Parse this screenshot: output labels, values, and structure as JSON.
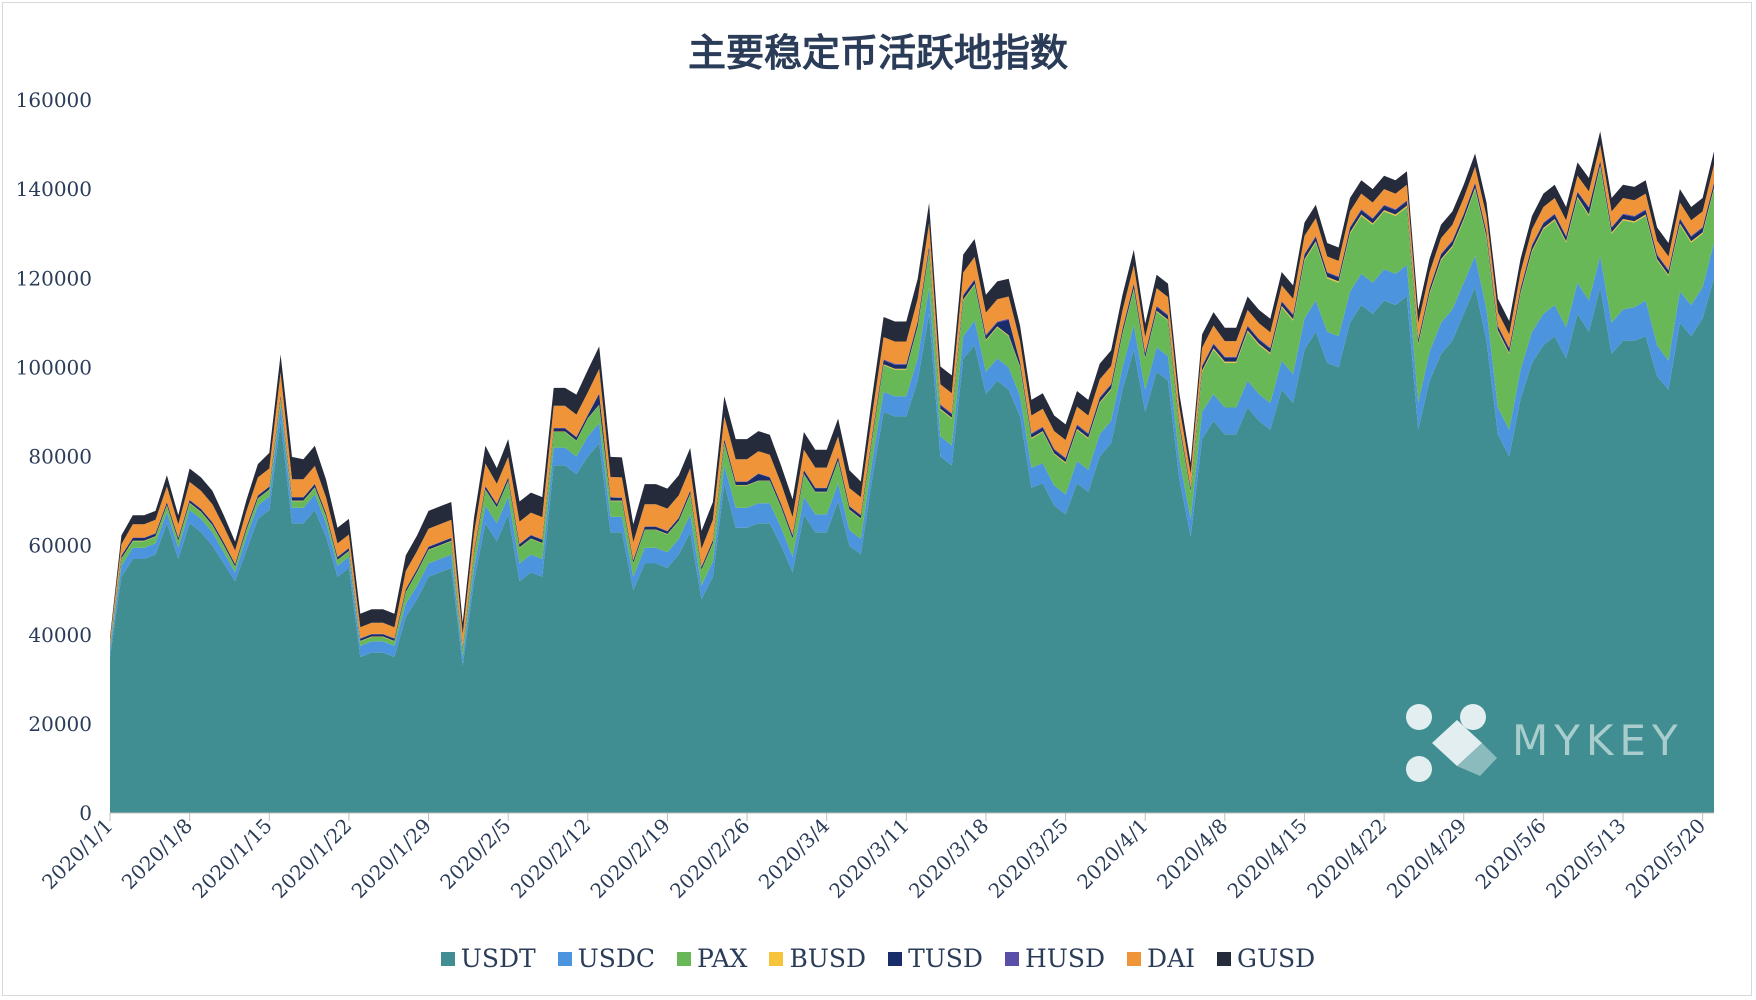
{
  "chart_data": {
    "type": "area",
    "stacked": true,
    "title": "主要稳定币活跃地指数",
    "xlabel": "",
    "ylabel": "",
    "ylim": [
      0,
      160000
    ],
    "yticks": [
      0,
      20000,
      40000,
      60000,
      80000,
      100000,
      120000,
      140000,
      160000
    ],
    "x_start": "2020/1/1",
    "x_end": "2020/5/21",
    "x_tick_labels": [
      "2020/1/1",
      "2020/1/8",
      "2020/1/15",
      "2020/1/22",
      "2020/1/29",
      "2020/2/5",
      "2020/2/12",
      "2020/2/19",
      "2020/2/26",
      "2020/3/4",
      "2020/3/11",
      "2020/3/18",
      "2020/3/25",
      "2020/4/1",
      "2020/4/8",
      "2020/4/15",
      "2020/4/22",
      "2020/4/29",
      "2020/5/6",
      "2020/5/13",
      "2020/5/20"
    ],
    "grid": false,
    "legend_position": "bottom",
    "series": [
      {
        "name": "USDT",
        "color": "#408e91",
        "values": [
          35000,
          53000,
          57000,
          57000,
          58000,
          65000,
          57000,
          65000,
          63000,
          60000,
          56000,
          52000,
          59000,
          66000,
          68000,
          88000,
          65000,
          65000,
          68000,
          62000,
          53000,
          55000,
          35000,
          36000,
          36000,
          35000,
          44000,
          48000,
          53000,
          54000,
          55000,
          33000,
          52000,
          65000,
          61000,
          67000,
          52000,
          54000,
          53000,
          78000,
          78000,
          76000,
          80000,
          83000,
          63000,
          63000,
          50000,
          56000,
          56000,
          55000,
          58000,
          63000,
          48000,
          53000,
          74000,
          64000,
          64000,
          65000,
          65000,
          60000,
          54000,
          67000,
          63000,
          63000,
          70000,
          60000,
          58000,
          75000,
          90000,
          89000,
          89000,
          97000,
          112000,
          80000,
          78000,
          102000,
          105000,
          94000,
          97000,
          95000,
          89000,
          73000,
          74000,
          69000,
          67000,
          74000,
          72000,
          80000,
          83000,
          95000,
          104000,
          90000,
          99000,
          97000,
          75000,
          62000,
          84000,
          88000,
          85000,
          85000,
          91000,
          88000,
          86000,
          95000,
          92000,
          104000,
          108000,
          101000,
          100000,
          110000,
          114000,
          112000,
          115000,
          114000,
          116000,
          86000,
          97000,
          103000,
          106000,
          112000,
          118000,
          106000,
          85000,
          80000,
          93000,
          101000,
          105000,
          107000,
          102000,
          112000,
          108000,
          118000,
          103000,
          106000,
          106000,
          107000,
          98000,
          95000,
          110000,
          107000,
          111000,
          120000
        ]
      },
      {
        "name": "USDC",
        "color": "#4c94dd",
        "values": [
          1500,
          2500,
          2500,
          2500,
          2500,
          2500,
          2500,
          3000,
          3000,
          3000,
          2500,
          2000,
          3000,
          3000,
          3000,
          3500,
          3500,
          3500,
          3500,
          3000,
          2500,
          2500,
          2500,
          2500,
          2500,
          2500,
          3000,
          3000,
          3000,
          3000,
          3000,
          2000,
          3000,
          4000,
          4000,
          4000,
          4000,
          4000,
          4000,
          4000,
          4000,
          4000,
          4500,
          4500,
          3500,
          3500,
          3000,
          3500,
          3500,
          3500,
          3500,
          4000,
          3000,
          3500,
          4000,
          4500,
          4500,
          4500,
          4500,
          4000,
          3500,
          4000,
          4000,
          4000,
          4000,
          3500,
          3500,
          4000,
          4500,
          4500,
          4500,
          5000,
          6000,
          4500,
          4500,
          5000,
          5500,
          5000,
          5000,
          5000,
          4500,
          4500,
          4500,
          4500,
          4500,
          5000,
          5000,
          5000,
          5000,
          5000,
          5500,
          5000,
          5500,
          5500,
          4500,
          4000,
          6000,
          6000,
          6000,
          6000,
          6000,
          6000,
          6000,
          6500,
          6500,
          7000,
          7000,
          7000,
          7000,
          7000,
          7000,
          7000,
          7000,
          7000,
          7000,
          6000,
          6500,
          7000,
          7000,
          7000,
          7000,
          7000,
          6000,
          6000,
          6500,
          7000,
          7000,
          7000,
          7000,
          7000,
          7000,
          7000,
          7000,
          7000,
          7500,
          8000,
          7000,
          6500,
          7000,
          7000,
          7000,
          8000
        ]
      },
      {
        "name": "PAX",
        "color": "#69b857",
        "values": [
          800,
          1500,
          1500,
          1500,
          1500,
          1500,
          1500,
          1500,
          1500,
          1500,
          1500,
          1200,
          1500,
          1500,
          1500,
          1500,
          1500,
          1500,
          1500,
          1500,
          1200,
          1200,
          1000,
          1000,
          1000,
          1000,
          2500,
          3000,
          3000,
          3000,
          3000,
          1500,
          3000,
          3500,
          3500,
          3500,
          3500,
          3500,
          3500,
          3500,
          3500,
          3500,
          4000,
          4000,
          3500,
          3500,
          3000,
          4000,
          4000,
          4000,
          4000,
          4500,
          3500,
          4000,
          5000,
          5000,
          5000,
          5000,
          5000,
          4500,
          4000,
          5000,
          5000,
          5000,
          5000,
          4500,
          4500,
          5000,
          6000,
          6000,
          6000,
          7000,
          8000,
          6000,
          6000,
          8000,
          8000,
          7000,
          7000,
          7000,
          6500,
          6500,
          7000,
          7000,
          7000,
          7000,
          7000,
          7000,
          7000,
          7500,
          8000,
          7000,
          8000,
          8000,
          7000,
          6000,
          9000,
          10000,
          10000,
          10000,
          11000,
          11000,
          11000,
          12000,
          12000,
          13000,
          13000,
          12000,
          12000,
          13000,
          13000,
          13000,
          13000,
          13000,
          13000,
          13000,
          13000,
          14000,
          14000,
          14000,
          15000,
          16000,
          17000,
          17000,
          17000,
          18000,
          19000,
          19000,
          19000,
          19000,
          19000,
          20000,
          20000,
          20000,
          19000,
          19000,
          19000,
          19000,
          15000,
          14000,
          12000,
          12000
        ]
      },
      {
        "name": "BUSD",
        "color": "#f7c43c",
        "values": [
          50,
          100,
          100,
          100,
          100,
          100,
          100,
          100,
          100,
          100,
          100,
          100,
          100,
          100,
          100,
          100,
          100,
          100,
          100,
          100,
          100,
          100,
          100,
          100,
          100,
          100,
          100,
          100,
          100,
          100,
          100,
          100,
          100,
          100,
          100,
          100,
          100,
          100,
          100,
          100,
          100,
          100,
          100,
          100,
          100,
          100,
          100,
          100,
          100,
          100,
          100,
          100,
          100,
          100,
          100,
          100,
          100,
          100,
          100,
          100,
          100,
          100,
          100,
          100,
          100,
          100,
          100,
          100,
          200,
          200,
          200,
          200,
          200,
          200,
          200,
          200,
          200,
          200,
          200,
          200,
          200,
          200,
          200,
          200,
          200,
          200,
          200,
          200,
          200,
          200,
          200,
          200,
          200,
          200,
          200,
          200,
          300,
          300,
          300,
          300,
          300,
          300,
          300,
          300,
          300,
          300,
          300,
          300,
          300,
          300,
          300,
          300,
          300,
          300,
          300,
          300,
          300,
          300,
          300,
          300,
          300,
          300,
          300,
          300,
          300,
          300,
          300,
          300,
          300,
          300,
          300,
          300,
          300,
          300,
          300,
          300,
          300,
          300,
          300,
          300,
          300,
          300
        ]
      },
      {
        "name": "TUSD",
        "color": "#1a2d6b",
        "values": [
          300,
          600,
          600,
          600,
          600,
          600,
          600,
          600,
          600,
          600,
          600,
          500,
          600,
          600,
          600,
          700,
          700,
          700,
          700,
          600,
          600,
          600,
          500,
          500,
          500,
          500,
          600,
          600,
          600,
          600,
          600,
          500,
          600,
          700,
          700,
          700,
          700,
          700,
          700,
          700,
          700,
          700,
          700,
          2500,
          700,
          600,
          600,
          600,
          600,
          600,
          600,
          700,
          600,
          600,
          800,
          700,
          700,
          1500,
          700,
          700,
          700,
          800,
          800,
          800,
          800,
          700,
          700,
          800,
          900,
          900,
          900,
          1000,
          1000,
          800,
          800,
          900,
          900,
          900,
          900,
          3500,
          900,
          800,
          800,
          800,
          800,
          800,
          800,
          900,
          900,
          900,
          1000,
          900,
          900,
          900,
          800,
          700,
          900,
          900,
          900,
          900,
          900,
          900,
          900,
          900,
          900,
          1000,
          1000,
          900,
          900,
          1000,
          1000,
          1000,
          1000,
          1000,
          1000,
          900,
          900,
          1000,
          1000,
          1000,
          1000,
          1000,
          900,
          900,
          900,
          1000,
          1000,
          1000,
          1000,
          1000,
          1500,
          1000,
          1000,
          1000,
          1000,
          1000,
          900,
          900,
          1000,
          1000,
          1000,
          1000
        ]
      },
      {
        "name": "HUSD",
        "color": "#5a4fa8",
        "values": [
          50,
          100,
          100,
          100,
          100,
          100,
          100,
          100,
          100,
          100,
          100,
          100,
          100,
          100,
          100,
          100,
          100,
          100,
          100,
          100,
          100,
          100,
          100,
          100,
          100,
          100,
          100,
          100,
          100,
          100,
          100,
          100,
          100,
          100,
          100,
          100,
          100,
          100,
          100,
          100,
          100,
          100,
          100,
          100,
          100,
          100,
          100,
          100,
          100,
          100,
          100,
          100,
          100,
          100,
          100,
          100,
          100,
          100,
          100,
          100,
          100,
          100,
          100,
          100,
          100,
          100,
          100,
          100,
          200,
          200,
          200,
          200,
          200,
          200,
          200,
          200,
          200,
          200,
          200,
          200,
          200,
          200,
          200,
          200,
          200,
          200,
          200,
          200,
          200,
          200,
          200,
          200,
          200,
          200,
          200,
          200,
          200,
          200,
          200,
          200,
          200,
          200,
          200,
          200,
          200,
          200,
          200,
          200,
          200,
          200,
          200,
          200,
          200,
          200,
          200,
          200,
          200,
          200,
          200,
          200,
          200,
          200,
          200,
          200,
          200,
          200,
          200,
          200,
          200,
          200,
          200,
          200,
          200,
          200,
          200,
          200,
          200,
          200,
          200,
          200,
          200,
          200
        ]
      },
      {
        "name": "DAI",
        "color": "#f0943a",
        "values": [
          1000,
          2500,
          3000,
          3000,
          3000,
          3500,
          3000,
          4000,
          4000,
          4000,
          3500,
          3000,
          3500,
          4000,
          4000,
          5000,
          4000,
          4000,
          4000,
          3500,
          3000,
          3000,
          2500,
          2500,
          2500,
          2500,
          4000,
          4000,
          4000,
          4000,
          4000,
          3000,
          4000,
          5000,
          4500,
          4500,
          5000,
          5000,
          5000,
          5000,
          5000,
          5000,
          5000,
          5500,
          4500,
          4500,
          4000,
          5000,
          5000,
          5000,
          5000,
          5000,
          4000,
          4500,
          5000,
          5000,
          5000,
          5000,
          5000,
          4500,
          4000,
          4500,
          4500,
          4500,
          4500,
          4000,
          4000,
          4500,
          5000,
          5000,
          5000,
          5000,
          5000,
          4500,
          4500,
          5000,
          5000,
          5000,
          5000,
          5000,
          4500,
          4000,
          4000,
          4000,
          4000,
          4000,
          4000,
          4000,
          4000,
          4000,
          4000,
          3500,
          4000,
          4000,
          3500,
          3000,
          4000,
          4000,
          3500,
          3500,
          3500,
          3500,
          3500,
          3500,
          3500,
          4000,
          4000,
          3500,
          3500,
          3500,
          3500,
          3500,
          3500,
          3500,
          3500,
          3500,
          3500,
          3500,
          3500,
          3500,
          3500,
          3500,
          3000,
          3000,
          3500,
          3500,
          3500,
          3500,
          3500,
          3500,
          3500,
          3500,
          3500,
          3500,
          3500,
          3500,
          3000,
          3000,
          3500,
          3500,
          3500,
          4000
        ]
      },
      {
        "name": "GUSD",
        "color": "#252b3a",
        "values": [
          800,
          2000,
          2000,
          2000,
          2000,
          2500,
          2000,
          3000,
          3000,
          3000,
          2500,
          2000,
          2500,
          3000,
          3500,
          4000,
          5000,
          4500,
          4500,
          4000,
          3500,
          3500,
          3000,
          3000,
          3000,
          3000,
          3500,
          3500,
          4000,
          4000,
          4000,
          2500,
          3500,
          4000,
          3500,
          4000,
          4500,
          4500,
          4500,
          4000,
          4000,
          4500,
          5000,
          5000,
          4500,
          4500,
          4000,
          4500,
          4500,
          4500,
          4500,
          4500,
          4000,
          4000,
          4500,
          4500,
          4500,
          4500,
          4500,
          4000,
          4000,
          4000,
          4000,
          4000,
          4000,
          4000,
          3500,
          4000,
          4500,
          4500,
          4500,
          4500,
          4500,
          4000,
          4000,
          4000,
          4000,
          4000,
          4000,
          4000,
          3500,
          3500,
          3500,
          3500,
          3500,
          3500,
          3500,
          3500,
          3500,
          3500,
          3500,
          3000,
          3000,
          3000,
          3000,
          2500,
          3000,
          3000,
          3000,
          3000,
          3000,
          3000,
          3000,
          3000,
          3000,
          3000,
          3000,
          3000,
          3000,
          3000,
          3000,
          3000,
          3000,
          3000,
          3000,
          3000,
          3000,
          3000,
          3000,
          3000,
          3000,
          3000,
          3000,
          3000,
          3000,
          3000,
          3000,
          3000,
          3000,
          3000,
          3000,
          3000,
          3000,
          3000,
          3000,
          3000,
          3000,
          3000,
          3000,
          3000,
          3000,
          3000
        ]
      }
    ]
  },
  "watermark": {
    "text": "MYKEY"
  }
}
